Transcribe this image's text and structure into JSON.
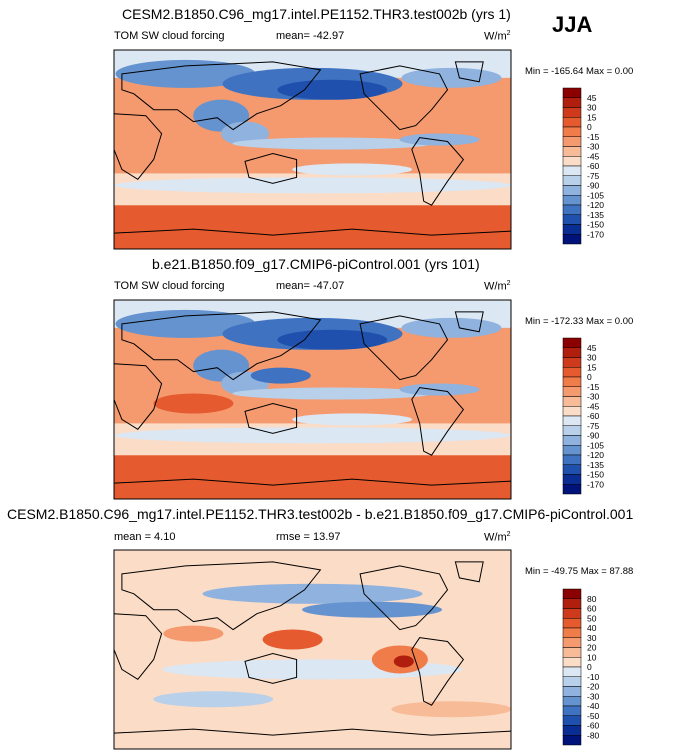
{
  "season": "JJA",
  "chart_data": [
    {
      "type": "heatmap",
      "title": "CESM2.B1850.C96_mg17.intel.PE1152.THR3.test002b (yrs 1)",
      "variable": "TOM SW cloud forcing",
      "stat": "mean= -42.97",
      "units": "W/m",
      "units_exp": "2",
      "minmax": "Min = -165.64 Max =   0.00",
      "min": -165.64,
      "max": 0.0,
      "mean": -42.97,
      "colorbar_levels": [
        "45",
        "30",
        "15",
        "0",
        "-15",
        "-30",
        "-45",
        "-60",
        "-75",
        "-90",
        "-105",
        "-120",
        "-135",
        "-150",
        "-170"
      ],
      "colorbar_colors": [
        "#8b0000",
        "#b01e0e",
        "#cf3a1c",
        "#e55a2e",
        "#f07c4a",
        "#f59a6e",
        "#f8bb98",
        "#fbdcc6",
        "#dce7f4",
        "#b8d0ea",
        "#8fb2de",
        "#6593d0",
        "#3f72c0",
        "#1f50ad",
        "#0a2d94",
        "#00137a"
      ]
    },
    {
      "type": "heatmap",
      "title": "b.e21.B1850.f09_g17.CMIP6-piControl.001 (yrs 101)",
      "variable": "TOM SW cloud forcing",
      "stat": "mean= -47.07",
      "units": "W/m",
      "units_exp": "2",
      "minmax": "Min = -172.33 Max =   0.00",
      "min": -172.33,
      "max": 0.0,
      "mean": -47.07,
      "colorbar_levels": [
        "45",
        "30",
        "15",
        "0",
        "-15",
        "-30",
        "-45",
        "-60",
        "-75",
        "-90",
        "-105",
        "-120",
        "-135",
        "-150",
        "-170"
      ],
      "colorbar_colors": [
        "#8b0000",
        "#b01e0e",
        "#cf3a1c",
        "#e55a2e",
        "#f07c4a",
        "#f59a6e",
        "#f8bb98",
        "#fbdcc6",
        "#dce7f4",
        "#b8d0ea",
        "#8fb2de",
        "#6593d0",
        "#3f72c0",
        "#1f50ad",
        "#0a2d94",
        "#00137a"
      ]
    },
    {
      "type": "heatmap",
      "title": "CESM2.B1850.C96_mg17.intel.PE1152.THR3.test002b - b.e21.B1850.f09_g17.CMIP6-piControl.001",
      "stat": "mean =   4.10",
      "rmse": "rmse =   13.97",
      "units": "W/m",
      "units_exp": "2",
      "minmax": "Min = -49.75 Max =  87.88",
      "min": -49.75,
      "max": 87.88,
      "mean": 4.1,
      "rmse_value": 13.97,
      "colorbar_levels": [
        "80",
        "60",
        "50",
        "40",
        "30",
        "20",
        "10",
        "0",
        "-10",
        "-20",
        "-30",
        "-40",
        "-50",
        "-60",
        "-80"
      ],
      "colorbar_colors": [
        "#8b0000",
        "#b01e0e",
        "#cf3a1c",
        "#e55a2e",
        "#f07c4a",
        "#f59a6e",
        "#f8bb98",
        "#fbdcc6",
        "#dce7f4",
        "#b8d0ea",
        "#8fb2de",
        "#6593d0",
        "#3f72c0",
        "#1f50ad",
        "#0a2d94",
        "#00137a"
      ]
    }
  ]
}
